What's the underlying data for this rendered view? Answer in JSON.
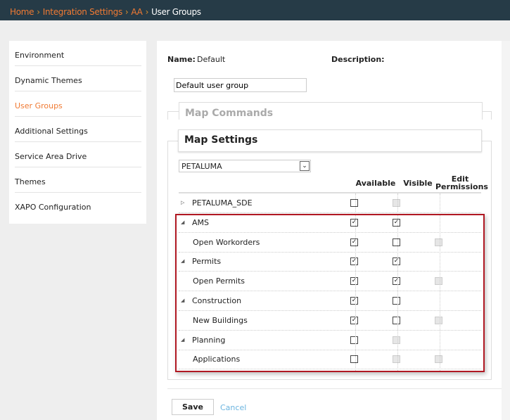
{
  "breadcrumb": {
    "items": [
      "Home",
      "Integration Settings",
      "AA"
    ],
    "current": "User Groups"
  },
  "sidebar": {
    "items": [
      {
        "label": "Environment",
        "active": false
      },
      {
        "label": "Dynamic Themes",
        "active": false
      },
      {
        "label": "User Groups",
        "active": true
      },
      {
        "label": "Additional Settings",
        "active": false
      },
      {
        "label": "Service Area Drive",
        "active": false
      },
      {
        "label": "Themes",
        "active": false
      },
      {
        "label": "XAPO Configuration",
        "active": false
      }
    ]
  },
  "form": {
    "name_label": "Name:",
    "name_value": "Default",
    "description_label": "Description:",
    "description_value": "Default user group"
  },
  "sections": {
    "map_commands": "Map Commands",
    "map_settings": "Map Settings"
  },
  "map_select": {
    "value": "PETALUMA"
  },
  "table": {
    "columns": {
      "available": "Available",
      "visible": "Visible",
      "edit1": "Edit",
      "edit2": "Permissions"
    },
    "rows": [
      {
        "label": "PETALUMA_SDE",
        "group": true,
        "collapsed": true,
        "available": false,
        "visible": null,
        "edit": "none"
      },
      {
        "label": "AMS",
        "group": true,
        "available": true,
        "visible": true,
        "edit": "none"
      },
      {
        "label": "Open Workorders",
        "group": false,
        "available": true,
        "visible": false,
        "edit": "disabled"
      },
      {
        "label": "Permits",
        "group": true,
        "available": true,
        "visible": true,
        "edit": "none"
      },
      {
        "label": "Open Permits",
        "group": false,
        "available": true,
        "visible": true,
        "edit": "disabled"
      },
      {
        "label": "Construction",
        "group": true,
        "available": true,
        "visible": false,
        "edit": "none"
      },
      {
        "label": "New Buildings",
        "group": false,
        "available": true,
        "visible": false,
        "edit": "disabled"
      },
      {
        "label": "Planning",
        "group": true,
        "available": false,
        "visible": null,
        "edit": "none"
      },
      {
        "label": "Applications",
        "group": false,
        "available": false,
        "visible": null,
        "edit": "disabled"
      }
    ]
  },
  "actions": {
    "save": "Save",
    "cancel": "Cancel"
  },
  "colors": {
    "header_bg": "#263b47",
    "accent": "#f07a33",
    "highlight_border": "#b01822",
    "link": "#6cb5e0"
  }
}
